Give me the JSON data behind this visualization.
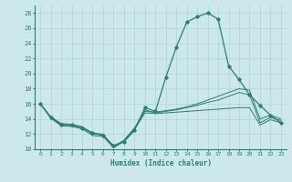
{
  "xlabel": "Humidex (Indice chaleur)",
  "background_color": "#cce8ea",
  "line_color": "#2e7d74",
  "grid_color": "#aed4d6",
  "xlim": [
    -0.5,
    23.5
  ],
  "ylim": [
    10,
    29
  ],
  "yticks": [
    10,
    12,
    14,
    16,
    18,
    20,
    22,
    24,
    26,
    28
  ],
  "xticks": [
    0,
    1,
    2,
    3,
    4,
    5,
    6,
    7,
    8,
    9,
    10,
    11,
    12,
    13,
    14,
    15,
    16,
    17,
    18,
    19,
    20,
    21,
    22,
    23
  ],
  "xticklabels": [
    "0",
    "1",
    "2",
    "3",
    "4",
    "5",
    "6",
    "7",
    "8",
    "9",
    "10",
    "11",
    "12",
    "13",
    "14",
    "15",
    "16",
    "17",
    "18",
    "19",
    "20",
    "21",
    "22",
    "23"
  ],
  "series": [
    [
      16.0,
      14.2,
      13.3,
      13.2,
      12.8,
      12.2,
      11.8,
      10.5,
      11.0,
      12.5,
      15.5,
      15.0,
      19.5,
      23.5,
      26.8,
      27.5,
      28.0,
      27.2,
      21.0,
      19.2,
      17.2,
      15.8,
      14.5,
      13.5
    ],
    [
      16.0,
      14.2,
      13.2,
      13.1,
      12.9,
      12.0,
      11.9,
      10.4,
      11.1,
      12.7,
      15.2,
      14.8,
      15.0,
      15.2,
      15.5,
      15.8,
      16.2,
      16.5,
      17.0,
      17.5,
      17.2,
      13.5,
      14.2,
      13.8
    ],
    [
      16.0,
      14.3,
      13.4,
      13.3,
      13.0,
      12.1,
      12.0,
      10.3,
      11.2,
      12.8,
      15.0,
      14.9,
      15.1,
      15.3,
      15.6,
      16.0,
      16.5,
      17.0,
      17.5,
      18.0,
      17.8,
      14.0,
      14.5,
      14.0
    ],
    [
      16.0,
      14.1,
      13.1,
      13.0,
      12.7,
      11.8,
      11.7,
      10.2,
      11.0,
      12.6,
      14.8,
      14.7,
      14.8,
      14.9,
      15.0,
      15.1,
      15.2,
      15.3,
      15.4,
      15.5,
      15.5,
      13.2,
      13.9,
      13.5
    ]
  ]
}
